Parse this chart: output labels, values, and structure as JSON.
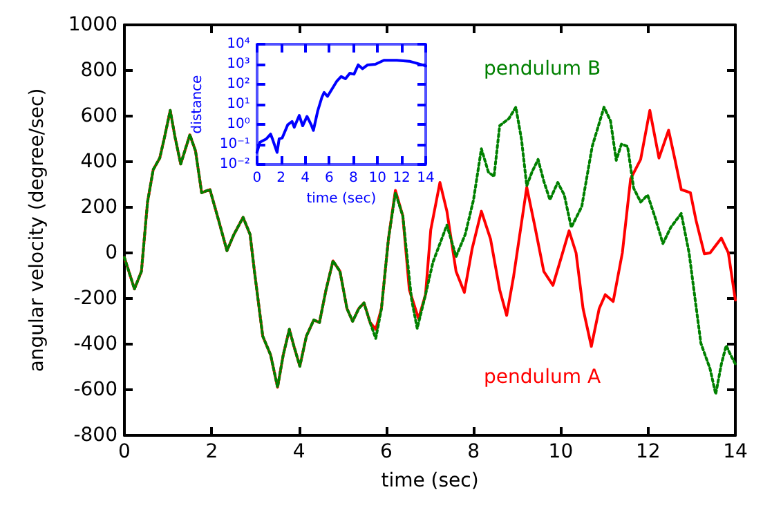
{
  "chart_data": [
    {
      "type": "line",
      "xlabel": "time (sec)",
      "ylabel": "angular velocity (degree/sec)",
      "xlim": [
        0,
        14
      ],
      "xticks": [
        0,
        2,
        4,
        6,
        8,
        10,
        12,
        14
      ],
      "ylim": [
        -800,
        1000
      ],
      "yticks": [
        -800,
        -600,
        -400,
        -200,
        0,
        200,
        400,
        600,
        800,
        1000
      ],
      "grid": false,
      "marker": "none",
      "series": [
        {
          "name": "pendulum B",
          "color": "#008000",
          "line_style": "dotted",
          "x": [
            0,
            0.23,
            0.39,
            0.53,
            0.66,
            0.81,
            0.92,
            1.05,
            1.16,
            1.29,
            1.5,
            1.63,
            1.77,
            1.96,
            2.16,
            2.35,
            2.51,
            2.72,
            2.88,
            2.98,
            3.17,
            3.35,
            3.51,
            3.64,
            3.78,
            3.88,
            4.02,
            4.17,
            4.34,
            4.47,
            4.62,
            4.78,
            4.94,
            5.1,
            5.23,
            5.37,
            5.49,
            5.63,
            5.76,
            5.89,
            6.05,
            6.21,
            6.38,
            6.58,
            6.71,
            6.9,
            7.07,
            7.39,
            7.6,
            7.81,
            8.0,
            8.18,
            8.34,
            8.47,
            8.6,
            8.81,
            8.97,
            9.1,
            9.22,
            9.34,
            9.48,
            9.61,
            9.75,
            9.93,
            10.08,
            10.24,
            10.48,
            10.72,
            10.99,
            11.14,
            11.27,
            11.39,
            11.53,
            11.67,
            11.83,
            11.99,
            12.15,
            12.34,
            12.52,
            12.76,
            12.94,
            13.05,
            13.21,
            13.42,
            13.55,
            13.68,
            13.79,
            13.89,
            14.0
          ],
          "values": [
            -20,
            -158,
            -81,
            223,
            365,
            416,
            508,
            625,
            508,
            390,
            518,
            447,
            264,
            278,
            142,
            10,
            81,
            156,
            81,
            -81,
            -365,
            -447,
            -589,
            -447,
            -335,
            -406,
            -497,
            -365,
            -294,
            -305,
            -162,
            -35,
            -81,
            -244,
            -300,
            -244,
            -219,
            -305,
            -375,
            -244,
            61,
            264,
            162,
            -203,
            -331,
            -183,
            -41,
            122,
            -16,
            81,
            233,
            457,
            355,
            335,
            558,
            589,
            639,
            497,
            294,
            355,
            410,
            315,
            233,
            309,
            254,
            112,
            203,
            467,
            639,
            579,
            406,
            477,
            467,
            284,
            223,
            254,
            162,
            41,
            112,
            173,
            0,
            -162,
            -396,
            -508,
            -619,
            -487,
            -406,
            -447,
            -487
          ]
        },
        {
          "name": "pendulum A",
          "color": "#ff0000",
          "line_style": "solid",
          "x": [
            0,
            0.23,
            0.39,
            0.53,
            0.66,
            0.81,
            0.92,
            1.05,
            1.16,
            1.29,
            1.5,
            1.63,
            1.77,
            1.96,
            2.16,
            2.35,
            2.51,
            2.72,
            2.88,
            2.98,
            3.17,
            3.35,
            3.51,
            3.64,
            3.78,
            3.88,
            4.02,
            4.17,
            4.34,
            4.47,
            4.62,
            4.78,
            4.94,
            5.1,
            5.23,
            5.37,
            5.49,
            5.63,
            5.76,
            5.89,
            6.05,
            6.21,
            6.38,
            6.53,
            6.74,
            6.9,
            7.02,
            7.23,
            7.39,
            7.6,
            7.79,
            7.97,
            8.18,
            8.39,
            8.6,
            8.76,
            8.92,
            9.22,
            9.4,
            9.61,
            9.82,
            10.01,
            10.19,
            10.35,
            10.51,
            10.7,
            10.88,
            11.02,
            11.2,
            11.41,
            11.6,
            11.83,
            12.04,
            12.25,
            12.47,
            12.62,
            12.76,
            12.97,
            13.1,
            13.29,
            13.42,
            13.68,
            13.84,
            14.0
          ],
          "values": [
            -20,
            -158,
            -81,
            223,
            365,
            416,
            508,
            625,
            508,
            390,
            518,
            447,
            264,
            278,
            142,
            10,
            81,
            156,
            81,
            -81,
            -365,
            -447,
            -589,
            -447,
            -335,
            -406,
            -497,
            -365,
            -294,
            -305,
            -162,
            -35,
            -81,
            -244,
            -300,
            -244,
            -219,
            -305,
            -335,
            -244,
            61,
            274,
            162,
            -162,
            -288,
            -183,
            101,
            309,
            183,
            -81,
            -173,
            20,
            183,
            61,
            -162,
            -274,
            -101,
            288,
            122,
            -81,
            -142,
            -20,
            97,
            0,
            -244,
            -410,
            -244,
            -183,
            -213,
            0,
            325,
            410,
            625,
            416,
            538,
            406,
            278,
            264,
            142,
            -4,
            0,
            65,
            0,
            -207
          ]
        }
      ]
    },
    {
      "type": "line",
      "xlabel": "time (sec)",
      "ylabel": "distance",
      "log": "y",
      "xlim": [
        0,
        14
      ],
      "xticks": [
        0,
        2,
        4,
        6,
        8,
        10,
        12,
        14
      ],
      "ylim": [
        0.01,
        10000
      ],
      "yticks": [
        {
          "value": 0.01,
          "label": "10⁻²"
        },
        {
          "value": 0.1,
          "label": "10⁻¹"
        },
        {
          "value": 1,
          "label": "10⁰"
        },
        {
          "value": 10,
          "label": "10¹"
        },
        {
          "value": 100,
          "label": "10²"
        },
        {
          "value": 1000,
          "label": "10³"
        },
        {
          "value": 10000,
          "label": "10⁴"
        }
      ],
      "grid": false,
      "marker": "none",
      "series": [
        {
          "color": "#0000ff",
          "line_style": "solid",
          "x": [
            0,
            0.25,
            0.78,
            1.13,
            1.31,
            1.67,
            1.84,
            2.09,
            2.55,
            2.91,
            3.09,
            3.51,
            3.79,
            4.15,
            4.5,
            4.68,
            5.04,
            5.39,
            5.57,
            5.85,
            6.28,
            6.63,
            6.99,
            7.34,
            7.7,
            8.05,
            8.4,
            8.76,
            9.18,
            9.82,
            10.53,
            11.6,
            12.65,
            13.72,
            14.0
          ],
          "values": [
            0.04,
            0.13,
            0.19,
            0.33,
            0.17,
            0.04,
            0.19,
            0.21,
            0.95,
            1.4,
            0.72,
            2.8,
            0.85,
            2.5,
            0.95,
            0.5,
            4.7,
            23,
            39,
            25,
            66,
            145,
            245,
            190,
            355,
            320,
            930,
            600,
            930,
            1000,
            1580,
            1580,
            1410,
            930,
            830
          ]
        }
      ]
    }
  ]
}
